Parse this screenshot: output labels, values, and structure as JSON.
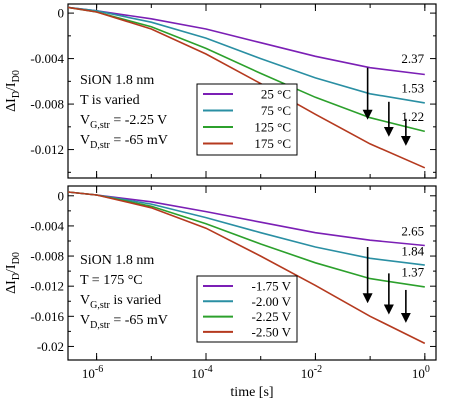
{
  "chart_data": [
    {
      "type": "line",
      "xscale": "log",
      "xlim": [
        3e-07,
        1.6
      ],
      "ylim": [
        -0.0145,
        0.0008
      ],
      "yticks": [
        0,
        -0.004,
        -0.008,
        -0.012
      ],
      "ytick_labels": [
        "0",
        "-0.004",
        "-0.008",
        "-0.012"
      ],
      "xticks": [
        1e-06,
        0.0001,
        0.01,
        1
      ],
      "xtick_labels": [],
      "ylabel": {
        "main": "ΔI",
        "sub1": "D",
        "mid": "/I",
        "sub2": "D0"
      },
      "notes": [
        {
          "text": "SiON 1.8 nm"
        },
        {
          "text": "T is varied"
        },
        {
          "main": "V",
          "sub": "G,str",
          "rest": " = -2.25 V"
        },
        {
          "main": "V",
          "sub": "D,str",
          "rest": " = -65 mV"
        }
      ],
      "series": [
        {
          "name": "25 °C",
          "color": "#7b1fb5",
          "x": [
            3e-07,
            1e-06,
            1e-05,
            0.0001,
            0.001,
            0.01,
            0.1,
            1
          ],
          "y": [
            0.0005,
            0.0002,
            -0.0005,
            -0.0014,
            -0.0026,
            -0.0038,
            -0.0048,
            -0.0054
          ]
        },
        {
          "name": "75 °C",
          "color": "#2a8fa3",
          "x": [
            3e-07,
            1e-06,
            1e-05,
            0.0001,
            0.001,
            0.01,
            0.1,
            1
          ],
          "y": [
            0.0005,
            0.0002,
            -0.0008,
            -0.0022,
            -0.004,
            -0.0057,
            -0.0071,
            -0.0079
          ]
        },
        {
          "name": "125 °C",
          "color": "#2ca02c",
          "x": [
            3e-07,
            1e-06,
            1e-05,
            0.0001,
            0.001,
            0.01,
            0.1,
            1
          ],
          "y": [
            0.0005,
            0.0001,
            -0.0012,
            -0.0031,
            -0.0053,
            -0.0074,
            -0.0092,
            -0.0104
          ]
        },
        {
          "name": "175 °C",
          "color": "#b53a1f",
          "x": [
            3e-07,
            1e-06,
            1e-05,
            0.0001,
            0.001,
            0.01,
            0.1,
            1
          ],
          "y": [
            0.0005,
            0.0001,
            -0.0014,
            -0.0036,
            -0.0062,
            -0.0089,
            -0.0115,
            -0.0136
          ]
        }
      ],
      "ratio_labels": [
        {
          "text": "2.37",
          "x": 0.6,
          "y": -0.0044
        },
        {
          "text": "1.53",
          "x": 0.6,
          "y": -0.007
        },
        {
          "text": "1.22",
          "x": 0.6,
          "y": -0.0095
        }
      ],
      "arrows": [
        {
          "x": 0.09,
          "y_from": -0.0048,
          "y_to": -0.0092
        },
        {
          "x": 0.22,
          "y_from": -0.0078,
          "y_to": -0.0107
        },
        {
          "x": 0.45,
          "y_from": -0.0093,
          "y_to": -0.0115
        }
      ]
    },
    {
      "type": "line",
      "xscale": "log",
      "xlim": [
        3e-07,
        1.6
      ],
      "ylim": [
        -0.0218,
        0.0013
      ],
      "yticks": [
        0,
        -0.004,
        -0.008,
        -0.012,
        -0.016,
        -0.02
      ],
      "ytick_labels": [
        "0",
        "-0.004",
        "-0.008",
        "-0.012",
        "-0.016",
        "-0.02"
      ],
      "xticks": [
        1e-06,
        0.0001,
        0.01,
        1
      ],
      "xtick_labels": [
        {
          "base": "10",
          "exp": "-6"
        },
        {
          "base": "10",
          "exp": "-4"
        },
        {
          "base": "10",
          "exp": "-2"
        },
        {
          "base": "10",
          "exp": "0"
        }
      ],
      "xlabel": "time [s]",
      "ylabel": {
        "main": "ΔI",
        "sub1": "D",
        "mid": "/I",
        "sub2": "D0"
      },
      "notes": [
        {
          "text": "SiON 1.8 nm"
        },
        {
          "text": "T = 175 °C"
        },
        {
          "main": "V",
          "sub": "G,str",
          "rest": " is varied"
        },
        {
          "main": "V",
          "sub": "D,str",
          "rest": " = -65 mV"
        }
      ],
      "series": [
        {
          "name": "-1.75 V",
          "color": "#7b1fb5",
          "x": [
            3e-07,
            1e-06,
            1e-05,
            0.0001,
            0.001,
            0.01,
            0.1,
            1
          ],
          "y": [
            0.0005,
            0.0001,
            -0.0008,
            -0.0021,
            -0.0035,
            -0.0049,
            -0.0059,
            -0.0066
          ]
        },
        {
          "name": "-2.00 V",
          "color": "#2a8fa3",
          "x": [
            3e-07,
            1e-06,
            1e-05,
            0.0001,
            0.001,
            0.01,
            0.1,
            1
          ],
          "y": [
            0.0005,
            0.0001,
            -0.0011,
            -0.0029,
            -0.0049,
            -0.0068,
            -0.0083,
            -0.0092
          ]
        },
        {
          "name": "-2.25 V",
          "color": "#2ca02c",
          "x": [
            3e-07,
            1e-06,
            1e-05,
            0.0001,
            0.001,
            0.01,
            0.1,
            1
          ],
          "y": [
            0.0005,
            0.0001,
            -0.0014,
            -0.0037,
            -0.0064,
            -0.0089,
            -0.011,
            -0.0121
          ]
        },
        {
          "name": "-2.50 V",
          "color": "#b53a1f",
          "x": [
            3e-07,
            1e-06,
            1e-05,
            0.0001,
            0.001,
            0.01,
            0.1,
            1
          ],
          "y": [
            0.0005,
            0.0001,
            -0.0016,
            -0.0043,
            -0.008,
            -0.0119,
            -0.016,
            -0.0196
          ]
        }
      ],
      "ratio_labels": [
        {
          "text": "2.65",
          "x": 0.6,
          "y": -0.0053
        },
        {
          "text": "1.84",
          "x": 0.6,
          "y": -0.0079
        },
        {
          "text": "1.37",
          "x": 0.6,
          "y": -0.0107
        }
      ],
      "arrows": [
        {
          "x": 0.09,
          "y_from": -0.0068,
          "y_to": -0.014
        },
        {
          "x": 0.22,
          "y_from": -0.0103,
          "y_to": -0.0155
        },
        {
          "x": 0.45,
          "y_from": -0.0125,
          "y_to": -0.0166
        }
      ]
    }
  ]
}
